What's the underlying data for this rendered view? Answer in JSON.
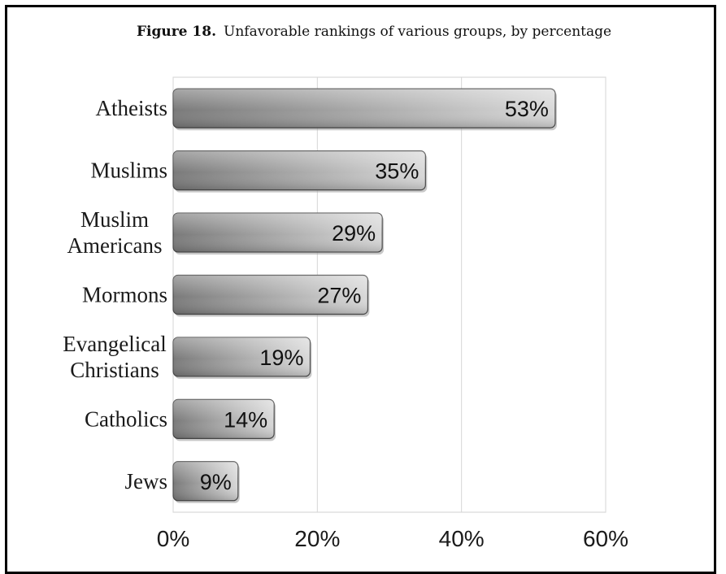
{
  "chart_data": {
    "type": "bar",
    "orientation": "horizontal",
    "title_prefix": "Figure 18.",
    "title_text": "Unfavorable rankings of various groups, by percentage",
    "categories": [
      [
        "Atheists"
      ],
      [
        "Muslims"
      ],
      [
        "Muslim",
        "Americans"
      ],
      [
        "Mormons"
      ],
      [
        "Evangelical",
        "Christians"
      ],
      [
        "Catholics"
      ],
      [
        "Jews"
      ]
    ],
    "values": [
      53,
      35,
      29,
      27,
      19,
      14,
      9
    ],
    "value_labels": [
      "53%",
      "35%",
      "29%",
      "27%",
      "19%",
      "14%",
      "9%"
    ],
    "xlim": [
      0,
      60
    ],
    "xticks": [
      0,
      20,
      40,
      60
    ],
    "xtick_labels": [
      "0%",
      "20%",
      "40%",
      "60%"
    ],
    "grid": true,
    "legend": "none"
  }
}
